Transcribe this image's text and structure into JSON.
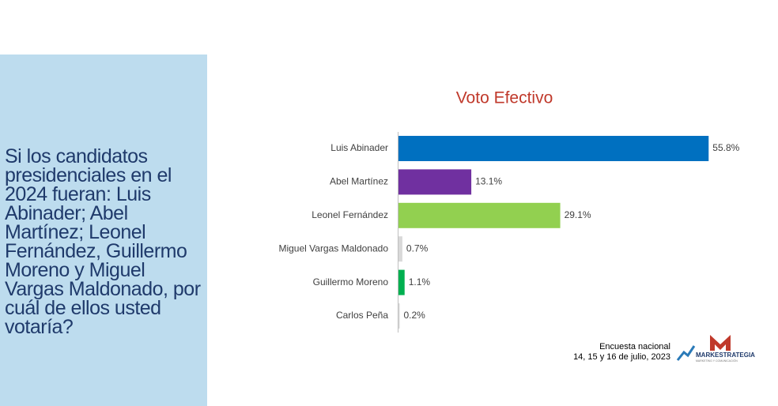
{
  "question": "Si los candidatos presidenciales en el 2024 fueran: Luis Abinader; Abel Martínez; Leonel Fernández, Guillermo Moreno y Miguel Vargas Maldonado, por cuál de ellos usted votaría?",
  "chart_data": {
    "type": "bar",
    "orientation": "horizontal",
    "title": "Voto Efectivo",
    "categories": [
      "Luis Abinader",
      "Abel Martínez",
      "Leonel Fernández",
      "Miguel Vargas Maldonado",
      "Guillermo Moreno",
      "Carlos Peña"
    ],
    "values": [
      55.8,
      13.1,
      29.1,
      0.7,
      1.1,
      0.2
    ],
    "value_labels": [
      "55.8%",
      "13.1%",
      "29.1%",
      "0.7%",
      "1.1%",
      "0.2%"
    ],
    "colors": [
      "#0070c0",
      "#7030a0",
      "#92d050",
      "#d9d9d9",
      "#00b050",
      "#d9d9d9"
    ]
  },
  "footer": {
    "source": "Encuesta nacional",
    "date": "14, 15 y 16 de julio, 2023",
    "logo": "MARKESTRATEGIA",
    "logo_tagline": "MARKETING Y COMUNICACIÓN"
  }
}
